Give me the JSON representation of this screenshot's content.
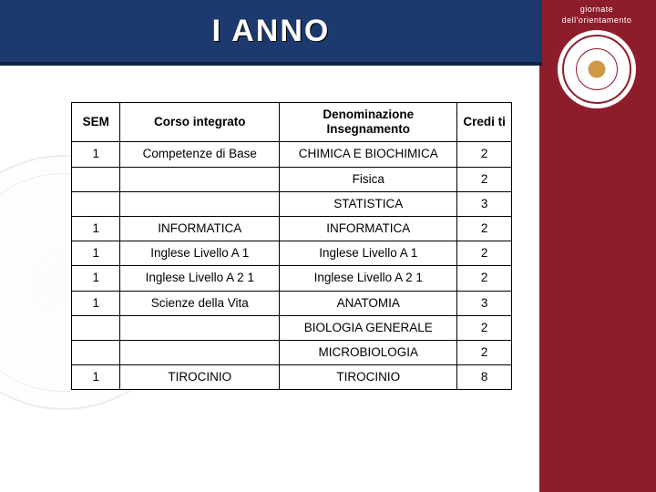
{
  "title": "I ANNO",
  "logo_text_top": "giornate",
  "logo_text_bottom": "dell'orientamento",
  "table": {
    "headers": {
      "sem": "SEM",
      "corso": "Corso integrato",
      "denom": "Denominazione Insegnamento",
      "cred": "Credi ti"
    },
    "rows": [
      {
        "sem": "1",
        "corso": "Competenze di Base",
        "denom": "CHIMICA E BIOCHIMICA",
        "cred": "2"
      },
      {
        "sem": "",
        "corso": "",
        "denom": "Fisica",
        "cred": "2"
      },
      {
        "sem": "",
        "corso": "",
        "denom": "STATISTICA",
        "cred": "3"
      },
      {
        "sem": "1",
        "corso": "INFORMATICA",
        "denom": "INFORMATICA",
        "cred": "2"
      },
      {
        "sem": "1",
        "corso": "Inglese Livello A 1",
        "denom": "Inglese Livello A 1",
        "cred": "2"
      },
      {
        "sem": "1",
        "corso": "Inglese Livello A 2 1",
        "denom": "Inglese Livello A 2 1",
        "cred": "2"
      },
      {
        "sem": "1",
        "corso": "Scienze della Vita",
        "denom": "ANATOMIA",
        "cred": "3"
      },
      {
        "sem": "",
        "corso": "",
        "denom": "BIOLOGIA GENERALE",
        "cred": "2"
      },
      {
        "sem": "",
        "corso": "",
        "denom": "MICROBIOLOGIA",
        "cred": "2"
      },
      {
        "sem": "1",
        "corso": "TIROCINIO",
        "denom": "TIROCINIO",
        "cred": "8"
      }
    ]
  }
}
